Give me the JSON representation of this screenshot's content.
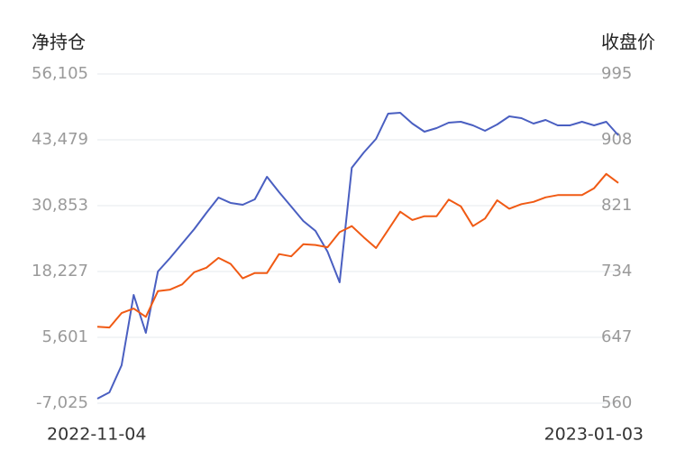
{
  "chart_data": {
    "type": "line",
    "y_label": "净持仓",
    "y2_label": "收盘价",
    "categories": [
      "2022-11-04",
      null,
      null,
      null,
      null,
      null,
      null,
      null,
      null,
      null,
      null,
      null,
      null,
      null,
      null,
      null,
      null,
      null,
      null,
      null,
      null,
      null,
      null,
      null,
      null,
      null,
      null,
      null,
      null,
      null,
      null,
      null,
      null,
      null,
      null,
      null,
      null,
      null,
      null,
      null,
      null,
      null,
      null,
      "2023-01-03"
    ],
    "ylim": [
      -7025,
      56105
    ],
    "yticks": [
      {
        "value": -7025,
        "label": "-7,025"
      },
      {
        "value": 5601,
        "label": "5,601"
      },
      {
        "value": 18227,
        "label": "18,227"
      },
      {
        "value": 30853,
        "label": "30,853"
      },
      {
        "value": 43479,
        "label": "43,479"
      },
      {
        "value": 56105,
        "label": "56,105"
      }
    ],
    "y2lim": [
      560,
      995
    ],
    "y2ticks": [
      560,
      647,
      734,
      821,
      908,
      995
    ],
    "grid": true,
    "series": [
      {
        "name": "净持仓",
        "color": "#4a5fc1",
        "values": [
          -6161,
          -4950,
          239,
          13730,
          6465,
          18227,
          20821,
          23589,
          26356,
          29469,
          32409,
          31372,
          31026,
          32064,
          36388,
          33447,
          30680,
          27913,
          26010,
          22032,
          16151,
          38117,
          41057,
          43652,
          48495,
          48668,
          46592,
          45036,
          45727,
          46765,
          46938,
          46246,
          45209,
          46419,
          47976,
          47630,
          46592,
          47284,
          46246,
          46246,
          46938,
          46246,
          46938,
          44344
        ]
      },
      {
        "name": "收盘价",
        "color": "#f05a14",
        "axis": "y2",
        "values": [
          661,
          660,
          679,
          685,
          674,
          708,
          710,
          717,
          733,
          739,
          752,
          744,
          725,
          732,
          732,
          757,
          754,
          770,
          769,
          766,
          786,
          794,
          779,
          765,
          789,
          813,
          802,
          807,
          807,
          829,
          820,
          794,
          804,
          828,
          817,
          823,
          826,
          832,
          835,
          835,
          835,
          844,
          863,
          851
        ]
      }
    ]
  }
}
